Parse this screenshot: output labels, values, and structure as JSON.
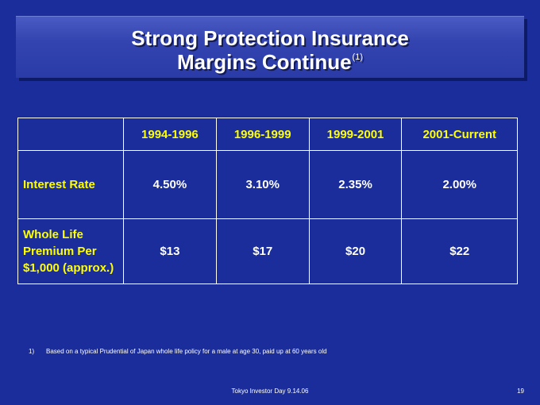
{
  "slide": {
    "title_line1": "Strong Protection Insurance",
    "title_line2": "Margins Continue",
    "title_sup": "(1)"
  },
  "table": {
    "columns": [
      "1994-1996",
      "1996-1999",
      "1999-2001",
      "2001-Current"
    ],
    "rows": [
      {
        "label": "Interest Rate",
        "values": [
          "4.50%",
          "3.10%",
          "2.35%",
          "2.00%"
        ]
      },
      {
        "label_lines": [
          "Whole Life",
          "Premium Per",
          "$1,000 (approx.)"
        ],
        "values": [
          "$13",
          "$17",
          "$20",
          "$22"
        ]
      }
    ]
  },
  "footnote": {
    "number": "1)",
    "text": "Based on a typical Prudential of Japan whole life policy for a male at age 30, paid up at 60 years old"
  },
  "footer": {
    "text": "Tokyo Investor Day 9.14.06",
    "page": "19"
  },
  "colors": {
    "background": "#1a2d9a",
    "title_bar": "#3344b0",
    "label_yellow": "#ffff00",
    "text_white": "#ffffff"
  }
}
